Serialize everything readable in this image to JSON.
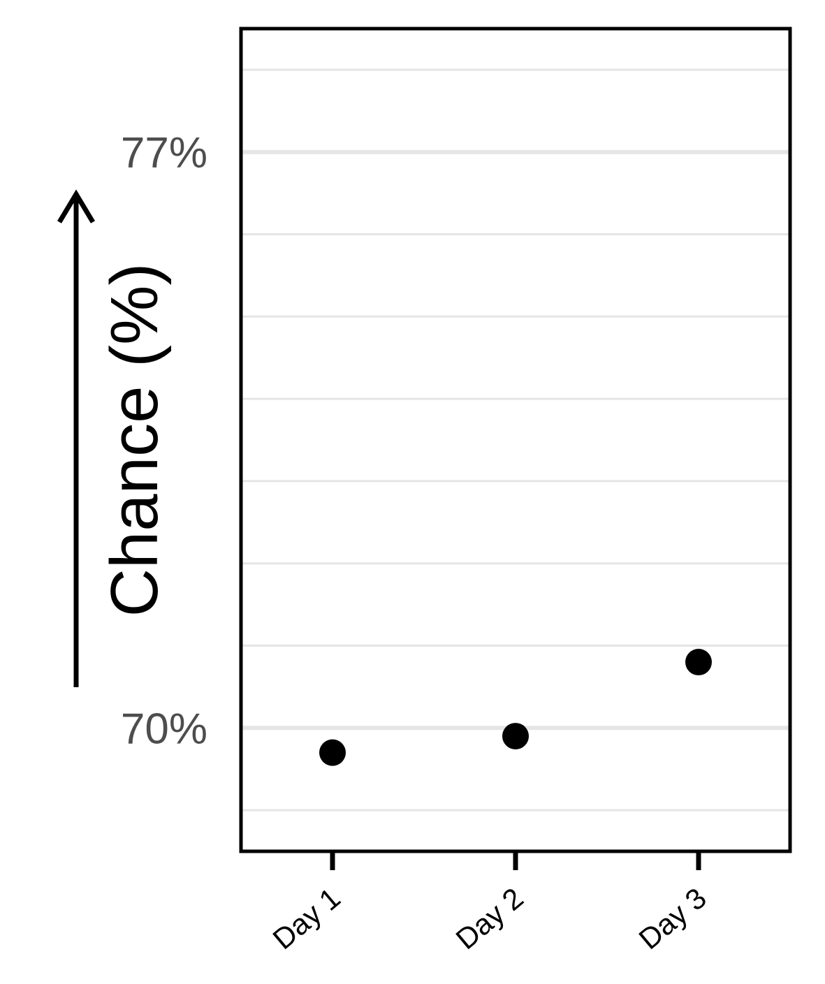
{
  "chart_data": {
    "type": "scatter",
    "title": "",
    "xlabel": "",
    "ylabel": "Chance (%)",
    "categories": [
      "Day 1",
      "Day 2",
      "Day 3"
    ],
    "values": [
      69.7,
      69.9,
      70.8
    ],
    "y_ticks": [
      {
        "value": 70,
        "label": "70%"
      },
      {
        "value": 77,
        "label": "77%"
      }
    ],
    "y_minor_gridlines": [
      69,
      71,
      72,
      73,
      74,
      75,
      76,
      78
    ],
    "ylim": [
      68.5,
      78.5
    ],
    "grid": "horizontal",
    "y_arrow": "up",
    "colors": {
      "points": "#000000",
      "grid": "#e5e5e5",
      "frame": "#000000"
    }
  }
}
